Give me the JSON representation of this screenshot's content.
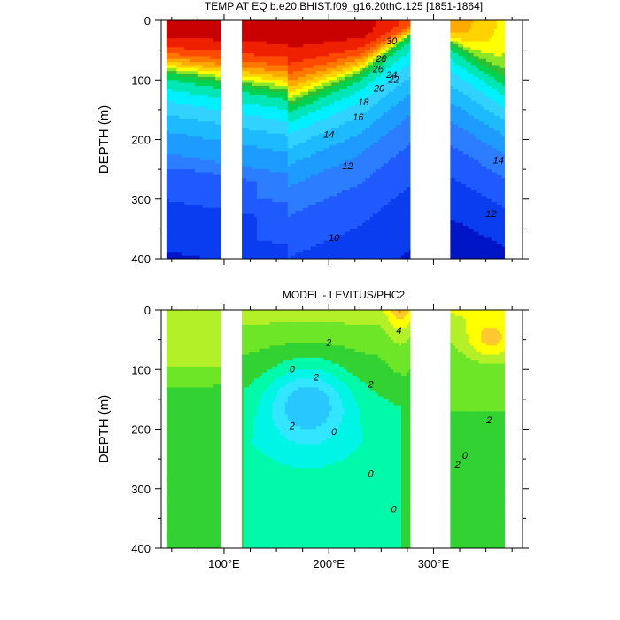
{
  "chart_data": [
    {
      "type": "contour",
      "title": "TEMP AT EQ b.e20.BHIST.f09_g16.20thC.125 [1851-1864]",
      "ylabel": "DEPTH (m)",
      "ylim": [
        400,
        0
      ],
      "yticks": [
        "0",
        "100",
        "200",
        "300",
        "400"
      ],
      "xlim": [
        40,
        385
      ],
      "xticks": [
        {
          "value": 100,
          "label": "100°E"
        },
        {
          "value": 200,
          "label": "200°E"
        },
        {
          "value": 300,
          "label": "300°E"
        }
      ],
      "ocean_x_ranges": [
        [
          45,
          97
        ],
        [
          117,
          120
        ],
        [
          120,
          278
        ],
        [
          316,
          368
        ]
      ],
      "field_type": "temperature",
      "contour_labels": [
        {
          "text": "30",
          "x": 260,
          "depth": 40
        },
        {
          "text": "28",
          "x": 250,
          "depth": 70
        },
        {
          "text": "26",
          "x": 247,
          "depth": 87
        },
        {
          "text": "24",
          "x": 260,
          "depth": 97
        },
        {
          "text": "22",
          "x": 262,
          "depth": 105
        },
        {
          "text": "20",
          "x": 248,
          "depth": 120
        },
        {
          "text": "18",
          "x": 233,
          "depth": 143
        },
        {
          "text": "16",
          "x": 228,
          "depth": 168
        },
        {
          "text": "14",
          "x": 200,
          "depth": 197
        },
        {
          "text": "12",
          "x": 218,
          "depth": 250
        },
        {
          "text": "10",
          "x": 205,
          "depth": 370
        },
        {
          "text": "14",
          "x": 362,
          "depth": 240
        },
        {
          "text": "12",
          "x": 355,
          "depth": 330
        }
      ]
    },
    {
      "type": "contour",
      "title": "MODEL - LEVITUS/PHC2",
      "ylabel": "DEPTH (m)",
      "ylim": [
        400,
        0
      ],
      "yticks": [
        "0",
        "100",
        "200",
        "300",
        "400"
      ],
      "xlim": [
        40,
        385
      ],
      "xticks": [
        {
          "value": 100,
          "label": "100°E"
        },
        {
          "value": 200,
          "label": "200°E"
        },
        {
          "value": 300,
          "label": "300°E"
        }
      ],
      "ocean_x_ranges": [
        [
          45,
          97
        ],
        [
          117,
          120
        ],
        [
          120,
          278
        ],
        [
          316,
          368
        ]
      ],
      "field_type": "difference",
      "contour_labels": [
        {
          "text": "2",
          "x": 200,
          "depth": 60
        },
        {
          "text": "4",
          "x": 267,
          "depth": 40
        },
        {
          "text": "0",
          "x": 165,
          "depth": 105
        },
        {
          "text": "2",
          "x": 188,
          "depth": 118
        },
        {
          "text": "2",
          "x": 240,
          "depth": 130
        },
        {
          "text": "2",
          "x": 165,
          "depth": 200
        },
        {
          "text": "0",
          "x": 205,
          "depth": 210
        },
        {
          "text": "2",
          "x": 353,
          "depth": 190
        },
        {
          "text": "0",
          "x": 330,
          "depth": 250
        },
        {
          "text": "2",
          "x": 323,
          "depth": 265
        },
        {
          "text": "0",
          "x": 240,
          "depth": 280
        },
        {
          "text": "0",
          "x": 262,
          "depth": 340
        }
      ]
    }
  ]
}
